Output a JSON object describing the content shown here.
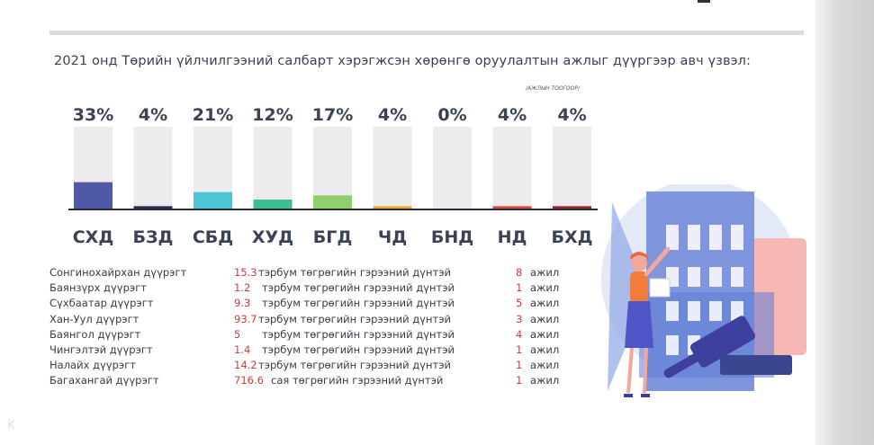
{
  "heading": "2021 онд Төрийн үйлчилгээний салбарт хэрэгжсэн хөрөнгө оруулалтын ажлыг дүүргээр авч үзвэл:",
  "unit_note": "/АЖЛЫН ТООГООР/",
  "chart_data": {
    "type": "bar",
    "categories": [
      "СХД",
      "БЗД",
      "СБД",
      "ХУД",
      "БГД",
      "ЧД",
      "БНД",
      "НД",
      "БХД"
    ],
    "values": [
      33,
      4,
      21,
      12,
      17,
      4,
      0,
      4,
      4
    ],
    "value_labels": [
      "33%",
      "4%",
      "21%",
      "12%",
      "17%",
      "4%",
      "0%",
      "4%",
      "4%"
    ],
    "ylim": [
      0,
      100
    ],
    "colors": [
      "#5059a8",
      "#25304f",
      "#4cc6d4",
      "#3cbf91",
      "#8fcf6e",
      "#f2a531",
      "#e6e6e6",
      "#d94a3c",
      "#9c2328"
    ],
    "track_color": "#ececee"
  },
  "rows": [
    {
      "name": "Сонгинохайрхан дүүрэгт",
      "value": "15.3",
      "unit": "тэрбум төгрөгийн гэрээний дүнтэй",
      "count": "8",
      "work": "ажил"
    },
    {
      "name": "Баянзүрх дүүрэгт",
      "value": "1.2",
      "unit": "тэрбум төгрөгийн гэрээний дүнтэй",
      "count": "1",
      "work": "ажил"
    },
    {
      "name": "Сүхбаатар дүүрэгт",
      "value": "9.3",
      "unit": "тэрбум төгрөгийн гэрээний дүнтэй",
      "count": "5",
      "work": "ажил"
    },
    {
      "name": "Хан-Уул дүүрэгт",
      "value": "93.7",
      "unit": "тэрбум төгрөгийн гэрээний дүнтэй",
      "count": "3",
      "work": "ажил"
    },
    {
      "name": "Баянгол дүүрэгт",
      "value": "5",
      "unit": "тэрбум төгрөгийн гэрээний дүнтэй",
      "count": "4",
      "work": "ажил"
    },
    {
      "name": "Чингэлтэй дүүрэгт",
      "value": "1.4",
      "unit": "тэрбум төгрөгийн гэрээний дүнтэй",
      "count": "1",
      "work": "ажил"
    },
    {
      "name": "Налайх дүүрэгт",
      "value": "14.2",
      "unit": "тэрбум төгрөгийн гэрээний дүнтэй",
      "count": "1",
      "work": "ажил"
    },
    {
      "name": "Багахангай дүүрэгт",
      "value": "716.6",
      "unit": "сая төгрөгийн гэрээний дүнтэй",
      "count": "1",
      "work": "ажил"
    }
  ]
}
